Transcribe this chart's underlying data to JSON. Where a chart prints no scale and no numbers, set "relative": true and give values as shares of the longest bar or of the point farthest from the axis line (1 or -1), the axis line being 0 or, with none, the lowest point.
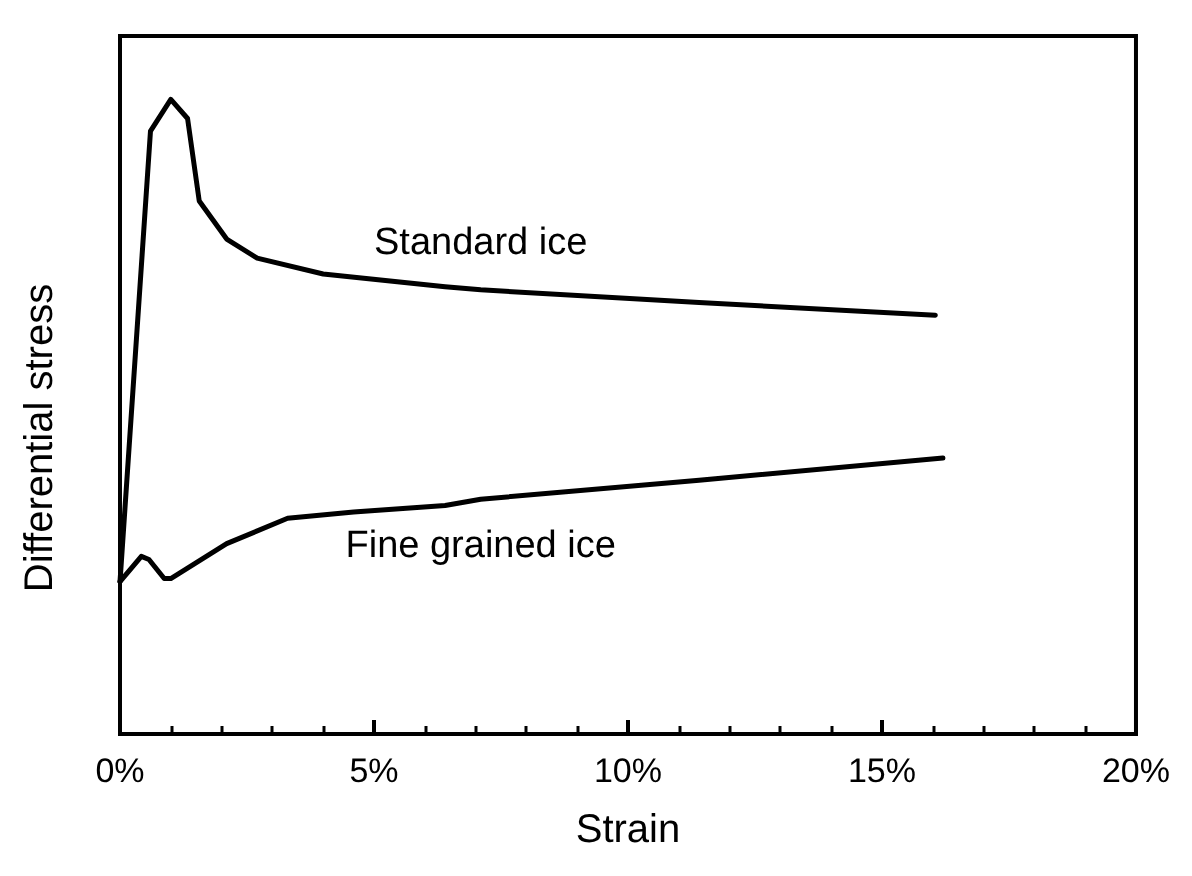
{
  "chart_data": {
    "type": "line",
    "relative": true,
    "xlabel": "Strain",
    "ylabel": "Differential stress",
    "xlim": [
      0,
      20
    ],
    "xticks": [
      {
        "value": 0,
        "label": "0%"
      },
      {
        "value": 5,
        "label": "5%"
      },
      {
        "value": 10,
        "label": "10%"
      },
      {
        "value": 15,
        "label": "15%"
      },
      {
        "value": 20,
        "label": "20%"
      }
    ],
    "marker": "none",
    "line_style": "solid",
    "legend": false,
    "grid": false,
    "series": [
      {
        "name": "Standard ice",
        "color": "#000000",
        "x": [
          0,
          0.6,
          1.0,
          1.33,
          1.56,
          2.1,
          2.7,
          4.0,
          6.4,
          7.1,
          11.4,
          16.05
        ],
        "values": [
          0.24,
          0.95,
          1.0,
          0.97,
          0.84,
          0.78,
          0.75,
          0.725,
          0.705,
          0.7,
          0.68,
          0.66
        ]
      },
      {
        "name": "Fine grained ice",
        "color": "#000000",
        "x": [
          0,
          0.42,
          0.57,
          0.87,
          1.0,
          2.1,
          3.3,
          4.6,
          6.4,
          7.1,
          11.4,
          16.2
        ],
        "values": [
          0.24,
          0.28,
          0.275,
          0.245,
          0.245,
          0.3,
          0.34,
          0.35,
          0.36,
          0.37,
          0.4,
          0.435
        ]
      }
    ]
  }
}
